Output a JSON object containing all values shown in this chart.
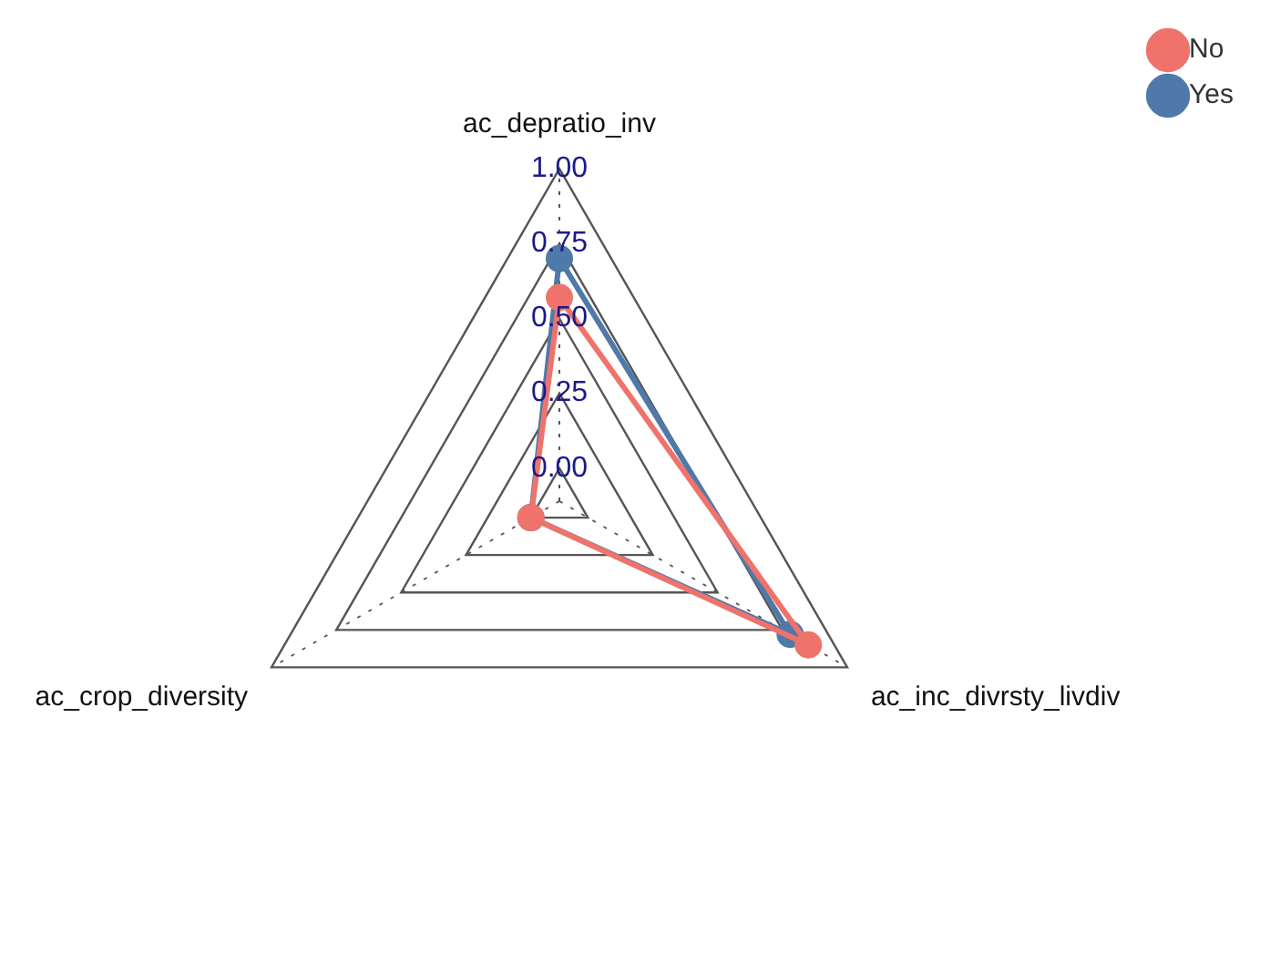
{
  "chart_data": {
    "type": "radar",
    "categories": [
      "ac_depratio_inv",
      "ac_inc_divrsty_livdiv",
      "ac_crop_diversity"
    ],
    "series": [
      {
        "name": "No",
        "color": "#ef736b",
        "values": [
          0.57,
          0.85,
          0
        ]
      },
      {
        "name": "Yes",
        "color": "#4f79a8",
        "values": [
          0.7,
          0.78,
          0
        ]
      }
    ],
    "ylim": [
      -0.11,
      1
    ],
    "yticks": [
      {
        "value": 0,
        "label": "0.00"
      },
      {
        "value": 0.25,
        "label": "0.25"
      },
      {
        "value": 0.5,
        "label": "0.50"
      },
      {
        "value": 0.75,
        "label": "0.75"
      },
      {
        "value": 1,
        "label": "1.00"
      }
    ],
    "grid": true,
    "legend": "top right",
    "marker": "circle",
    "line_style": "solid"
  }
}
